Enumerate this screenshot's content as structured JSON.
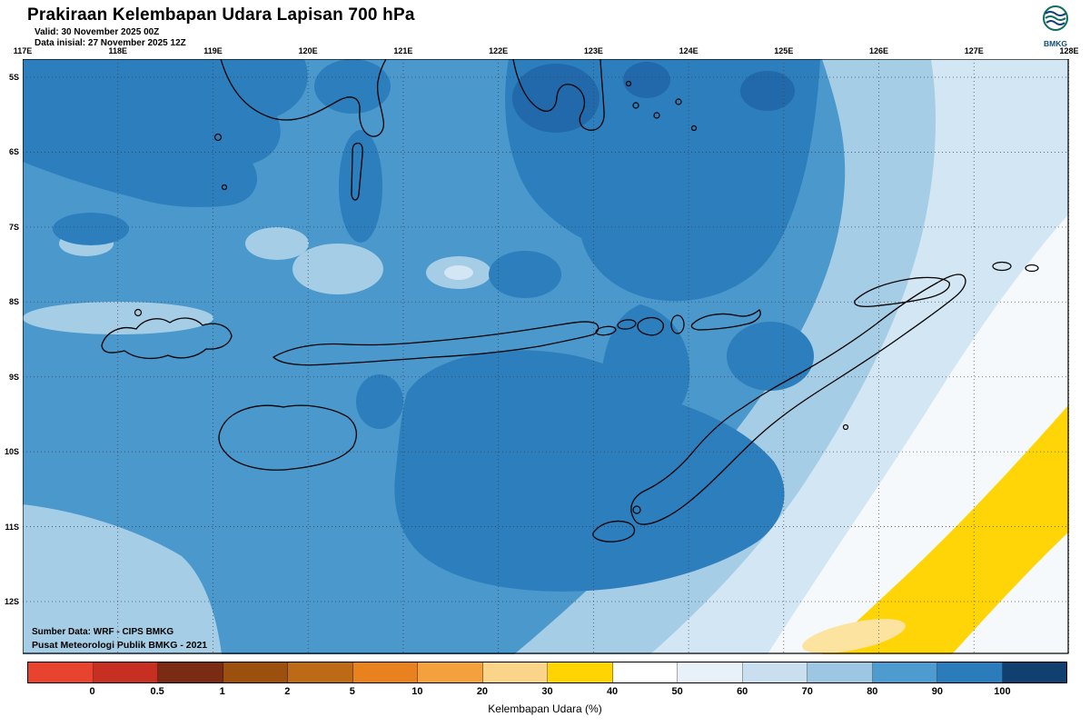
{
  "header": {
    "title": "Prakiraan Kelembapan Udara Lapisan 700 hPa",
    "valid_line": "Valid: 30 November 2025 00Z",
    "init_line": "Data inisial: 27 November 2025 12Z"
  },
  "logo": {
    "label": "BMKG"
  },
  "map": {
    "lon_labels": [
      "117E",
      "118E",
      "119E",
      "120E",
      "121E",
      "122E",
      "123E",
      "124E",
      "125E",
      "126E",
      "127E",
      "128E"
    ],
    "lat_labels": [
      "5S",
      "6S",
      "7S",
      "8S",
      "9S",
      "10S",
      "11S",
      "12S"
    ],
    "credit_line1": "Sumber Data: WRF - CIPS BMKG",
    "credit_line2": "Pusat Meteorologi Publik BMKG - 2021"
  },
  "colorbar": {
    "caption": "Kelembapan Udara (%)",
    "ticks": [
      "0",
      "0.5",
      "1",
      "2",
      "5",
      "10",
      "20",
      "30",
      "40",
      "50",
      "60",
      "70",
      "80",
      "90",
      "100"
    ],
    "colors": [
      "#e8432e",
      "#c62f22",
      "#7a2b14",
      "#9c500e",
      "#bd6a17",
      "#e8821e",
      "#f2a13c",
      "#fad489",
      "#ffd400",
      "#ffffff",
      "#e8f1f8",
      "#c9dff0",
      "#9cc6e2",
      "#4e9ccf",
      "#2b7cba",
      "#103f70"
    ]
  },
  "palette": {
    "base": "#4a98cc",
    "dark": "#2d7ebc",
    "darker": "#2169ab",
    "light": "#a5cee6",
    "xlight": "#d3e6f3",
    "white_zone": "#f5f9fb",
    "yellow": "#ffd508",
    "pale_orange": "#fce3a0"
  }
}
